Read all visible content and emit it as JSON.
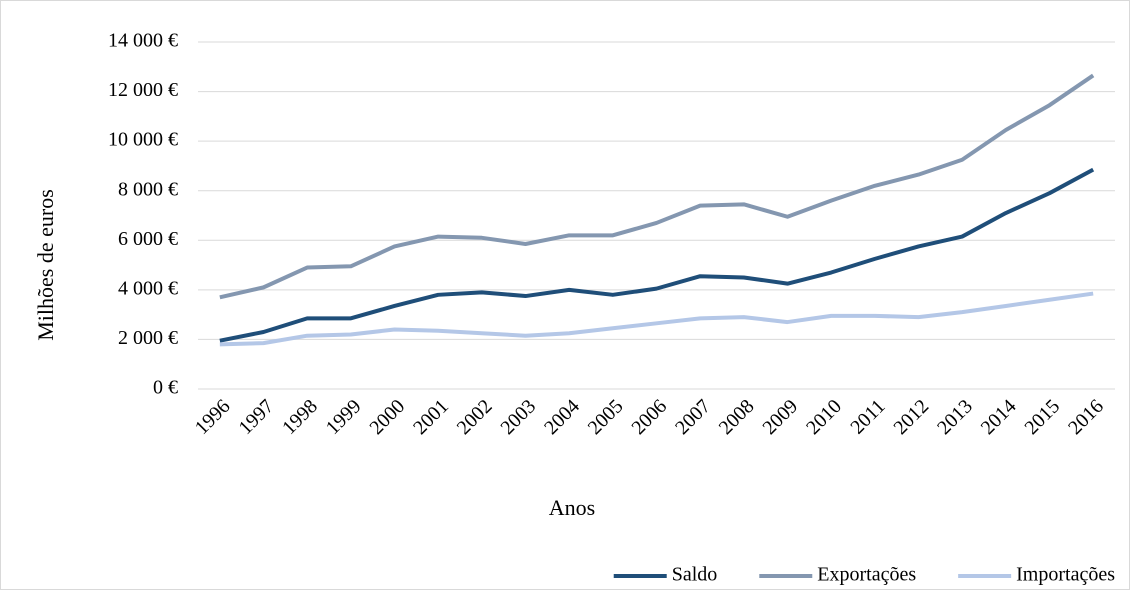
{
  "chart_data": {
    "type": "line",
    "x_label": "Anos",
    "y_label": "Milhões de euros",
    "categories": [
      "1996",
      "1997",
      "1998",
      "1999",
      "2000",
      "2001",
      "2002",
      "2003",
      "2004",
      "2005",
      "2006",
      "2007",
      "2008",
      "2009",
      "2010",
      "2011",
      "2012",
      "2013",
      "2014",
      "2015",
      "2016"
    ],
    "series": [
      {
        "name": "Saldo",
        "color": "#1f4e79",
        "values": [
          1950,
          2300,
          2850,
          2850,
          3350,
          3800,
          3900,
          3750,
          4000,
          3800,
          4050,
          4550,
          4500,
          4250,
          4700,
          5250,
          5750,
          6150,
          7100,
          7900,
          8850
        ]
      },
      {
        "name": "Exportações",
        "color": "#8497b0",
        "values": [
          3700,
          4100,
          4900,
          4950,
          5750,
          6150,
          6100,
          5850,
          6200,
          6200,
          6700,
          7400,
          7450,
          6950,
          7600,
          8200,
          8650,
          9250,
          10450,
          11450,
          12650
        ]
      },
      {
        "name": "Importações",
        "color": "#b4c7e7",
        "values": [
          1800,
          1850,
          2150,
          2200,
          2400,
          2350,
          2250,
          2150,
          2250,
          2450,
          2650,
          2850,
          2900,
          2700,
          2950,
          2950,
          2900,
          3100,
          3350,
          3600,
          3850
        ]
      }
    ],
    "ylim": [
      0,
      14000
    ],
    "yticks": [
      {
        "value": 0,
        "label": "0 €"
      },
      {
        "value": 2000,
        "label": "2 000 €"
      },
      {
        "value": 4000,
        "label": "4 000 €"
      },
      {
        "value": 6000,
        "label": "6 000 €"
      },
      {
        "value": 8000,
        "label": "8 000 €"
      },
      {
        "value": 10000,
        "label": "10 000 €"
      },
      {
        "value": 12000,
        "label": "12 000 €"
      },
      {
        "value": 14000,
        "label": "14 000 €"
      }
    ],
    "grid": true,
    "legend": "bottom-right"
  }
}
